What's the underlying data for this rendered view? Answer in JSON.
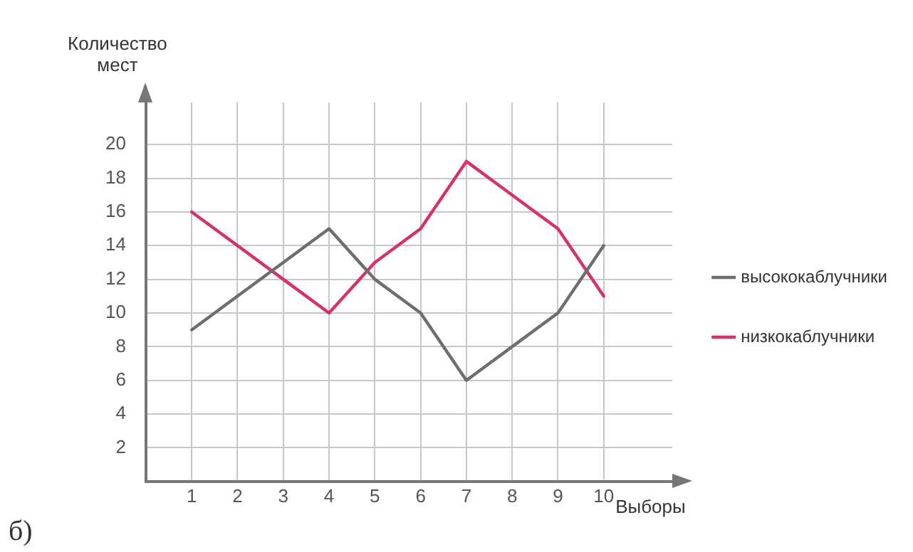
{
  "chart_data": {
    "type": "line",
    "xlabel": "Выборы",
    "ylabel": "Количество мест",
    "annotations": [
      "б)"
    ],
    "x": [
      1,
      2,
      3,
      4,
      5,
      6,
      7,
      8,
      9,
      10
    ],
    "xlim": [
      0,
      11.5
    ],
    "xticks": [
      1,
      2,
      3,
      4,
      5,
      6,
      7,
      8,
      9,
      10
    ],
    "ylim": [
      0,
      22.5
    ],
    "yticks": [
      2,
      4,
      6,
      8,
      10,
      12,
      14,
      16,
      18,
      20
    ],
    "series": [
      {
        "name": "высококаблучники",
        "color": "#6e6e6e",
        "values": [
          9,
          11,
          13,
          15,
          12,
          10,
          6,
          8,
          10,
          14
        ]
      },
      {
        "name": "низкокаблучники",
        "color": "#d8306a",
        "values": [
          16,
          14,
          12,
          10,
          13,
          15,
          19,
          17,
          15,
          11
        ]
      }
    ],
    "grid": true,
    "legend": "right",
    "marker": "none",
    "line_style": "solid"
  }
}
